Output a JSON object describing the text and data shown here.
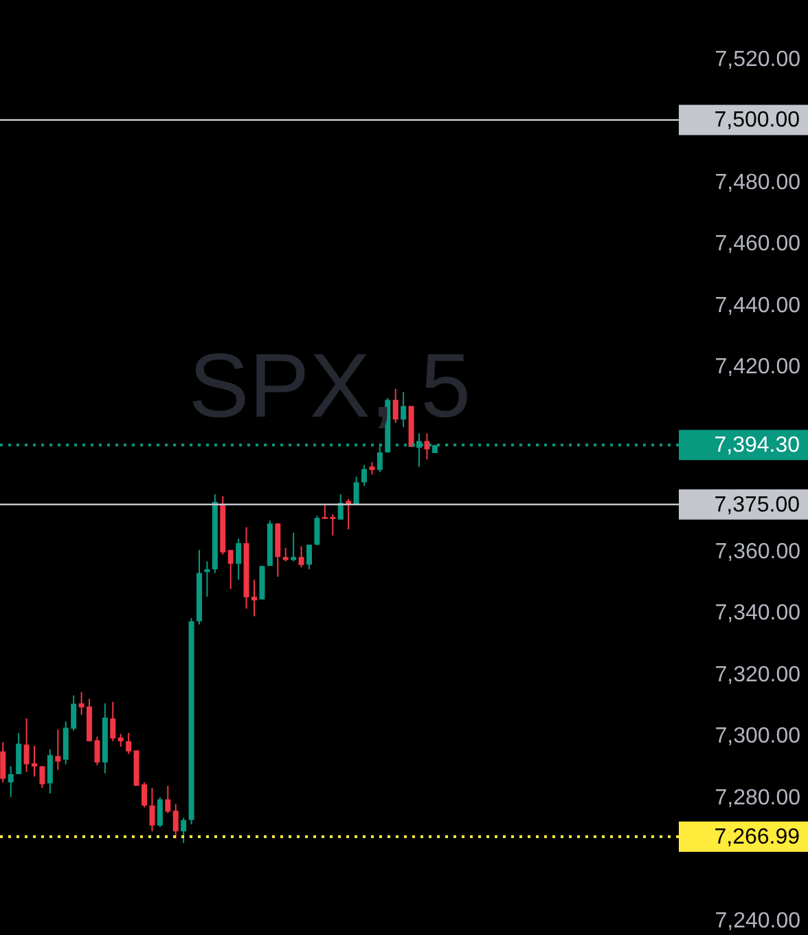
{
  "chart_data": {
    "type": "candlestick",
    "title": "SPX, 5",
    "categories": [
      null,
      null,
      null,
      null,
      null,
      null,
      null,
      null,
      null,
      null,
      null,
      null,
      null,
      null,
      null,
      null,
      null,
      null,
      null,
      null,
      null,
      null,
      null,
      null,
      null,
      null,
      null,
      null,
      null,
      null,
      null,
      null,
      null,
      null,
      null,
      null,
      null,
      null,
      null,
      null,
      null,
      null,
      null,
      null,
      null,
      null,
      null,
      null,
      null,
      null,
      null,
      null,
      null,
      null,
      null,
      null,
      null,
      null,
      null,
      null,
      null,
      null,
      null,
      null,
      null,
      null,
      null,
      null,
      null,
      null,
      null,
      null,
      null,
      null,
      null,
      null,
      null,
      null,
      null,
      null,
      null,
      null,
      null,
      null,
      null,
      null
    ],
    "ohlc": [
      [
        7294.7,
        7297.7,
        7284.6,
        7285.8
      ],
      [
        7284.6,
        7289.9,
        7279.8,
        7287.3
      ],
      [
        7287.3,
        7300.7,
        7287.3,
        7297.2
      ],
      [
        7296.9,
        7305.4,
        7288.0,
        7290.5
      ],
      [
        7290.8,
        7296.5,
        7286.5,
        7289.8
      ],
      [
        7289.9,
        7289.9,
        7282.8,
        7284.0
      ],
      [
        7284.3,
        7295.4,
        7281.0,
        7293.5
      ],
      [
        7293.2,
        7301.8,
        7288.7,
        7291.4
      ],
      [
        7292.0,
        7304.4,
        7290.5,
        7302.4
      ],
      [
        7302.1,
        7312.9,
        7301.4,
        7310.2
      ],
      [
        7310.3,
        7314.0,
        7306.6,
        7309.0
      ],
      [
        7309.3,
        7311.8,
        7298.0,
        7298.0
      ],
      [
        7298.3,
        7299.5,
        7290.2,
        7291.1
      ],
      [
        7291.1,
        7310.3,
        7287.6,
        7305.7
      ],
      [
        7305.4,
        7310.8,
        7298.0,
        7298.9
      ],
      [
        7299.2,
        7300.4,
        7296.2,
        7298.0
      ],
      [
        7298.0,
        7300.7,
        7293.9,
        7294.7
      ],
      [
        7295.0,
        7295.0,
        7283.5,
        7283.5
      ],
      [
        7284.0,
        7284.6,
        7276.5,
        7277.1
      ],
      [
        7277.1,
        7282.8,
        7268.7,
        7270.6
      ],
      [
        7270.6,
        7279.8,
        7270.1,
        7279.1
      ],
      [
        7279.1,
        7283.5,
        7274.6,
        7275.1
      ],
      [
        7275.4,
        7277.6,
        7266.4,
        7268.7
      ],
      [
        7268.7,
        7273.1,
        7264.9,
        7272.4
      ],
      [
        7272.4,
        7338.0,
        7271.0,
        7337.0
      ],
      [
        7337.0,
        7360.2,
        7336.0,
        7352.7
      ],
      [
        7353.0,
        7356.5,
        7345.0,
        7353.9
      ],
      [
        7353.9,
        7378.3,
        7352.7,
        7375.8
      ],
      [
        7375.1,
        7377.7,
        7358.7,
        7359.4
      ],
      [
        7360.2,
        7360.2,
        7347.5,
        7355.7
      ],
      [
        7355.7,
        7363.9,
        7350.5,
        7362.4
      ],
      [
        7362.4,
        7367.6,
        7341.1,
        7344.8
      ],
      [
        7345.0,
        7350.5,
        7338.6,
        7343.8
      ],
      [
        7344.1,
        7355.0,
        7344.1,
        7355.0
      ],
      [
        7355.0,
        7369.8,
        7355.0,
        7368.8
      ],
      [
        7368.8,
        7368.8,
        7351.5,
        7357.9
      ],
      [
        7357.9,
        7360.9,
        7356.5,
        7356.9
      ],
      [
        7356.9,
        7365.8,
        7356.5,
        7357.9
      ],
      [
        7357.9,
        7361.4,
        7354.5,
        7355.3
      ],
      [
        7355.4,
        7361.9,
        7353.9,
        7361.9
      ],
      [
        7361.9,
        7371.3,
        7361.7,
        7370.6
      ],
      [
        7370.9,
        7374.8,
        7370.3,
        7370.3
      ],
      [
        7370.9,
        7371.8,
        7364.9,
        7370.3
      ],
      [
        7370.1,
        7378.3,
        7370.1,
        7375.5
      ],
      [
        7376.1,
        7376.8,
        7366.9,
        7374.8
      ],
      [
        7374.8,
        7384.0,
        7374.8,
        7382.2
      ],
      [
        7382.2,
        7387.7,
        7381.0,
        7386.5
      ],
      [
        7387.3,
        7388.7,
        7384.7,
        7386.2
      ],
      [
        7386.2,
        7394.8,
        7385.5,
        7391.9
      ],
      [
        7391.9,
        7409.6,
        7391.9,
        7409.0
      ],
      [
        7409.0,
        7412.6,
        7401.5,
        7402.6
      ],
      [
        7402.6,
        7411.5,
        7400.1,
        7407.0
      ],
      [
        7407.0,
        7407.0,
        7393.7,
        7393.7
      ],
      [
        7393.4,
        7398.1,
        7387.2,
        7395.6
      ],
      [
        7395.6,
        7398.1,
        7389.6,
        7392.9
      ],
      [
        7391.7,
        7394.3,
        7391.7,
        7394.3
      ],
      null,
      null,
      null,
      null,
      null,
      null,
      null,
      null,
      null,
      null,
      null,
      null,
      null,
      null,
      null,
      null,
      null,
      null,
      null,
      null,
      null,
      null,
      null,
      null,
      null,
      null,
      null,
      null,
      null,
      null
    ],
    "colors": [
      "#f23645",
      "#089981",
      "#089981",
      "#f23645",
      "#f23645",
      "#f23645",
      "#089981",
      "#f23645",
      "#089981",
      "#089981",
      "#f23645",
      "#f23645",
      "#f23645",
      "#089981",
      "#f23645",
      "#f23645",
      "#f23645",
      "#f23645",
      "#f23645",
      "#f23645",
      "#089981",
      "#f23645",
      "#f23645",
      "#089981",
      "#089981",
      "#089981",
      "#089981",
      "#089981",
      "#f23645",
      "#f23645",
      "#089981",
      "#f23645",
      "#f23645",
      "#089981",
      "#089981",
      "#f23645",
      "#f23645",
      "#089981",
      "#f23645",
      "#089981",
      "#089981",
      "#f23645",
      "#f23645",
      "#089981",
      "#f23645",
      "#089981",
      "#089981",
      "#f23645",
      "#089981",
      "#089981",
      "#f23645",
      "#089981",
      "#f23645",
      "#089981",
      "#f23645",
      "#089981",
      null,
      null,
      null,
      null,
      null,
      null,
      null,
      null,
      null,
      null,
      null,
      null,
      null,
      null,
      null,
      null,
      null,
      null,
      null,
      null,
      null,
      null,
      null,
      null,
      null,
      null,
      null,
      null,
      null,
      null
    ],
    "ylim": [
      7235,
      7539
    ],
    "yticks": [
      {
        "value": 7240,
        "label": "7,240.00"
      },
      {
        "value": 7280,
        "label": "7,280.00"
      },
      {
        "value": 7300,
        "label": "7,300.00"
      },
      {
        "value": 7320,
        "label": "7,320.00"
      },
      {
        "value": 7340,
        "label": "7,340.00"
      },
      {
        "value": 7360,
        "label": "7,360.00"
      },
      {
        "value": 7420,
        "label": "7,420.00"
      },
      {
        "value": 7440,
        "label": "7,440.00"
      },
      {
        "value": 7460,
        "label": "7,460.00"
      },
      {
        "value": 7480,
        "label": "7,480.00"
      },
      {
        "value": 7500,
        "label": "7,500.00"
      },
      {
        "value": 7520,
        "label": "7,520.00"
      }
    ],
    "ref_lines": [
      {
        "axis": "y",
        "value": 7500,
        "label": "7,500.00",
        "color": "#c3c6cc",
        "line_style": "solid"
      },
      {
        "axis": "y",
        "value": 7394.3,
        "label": "7,394.30",
        "color": "#089981",
        "line_style": "dotted"
      },
      {
        "axis": "y",
        "value": 7375,
        "label": "7,375.00",
        "color": "#c3c6cc",
        "line_style": "solid"
      },
      {
        "axis": "y",
        "value": 7266.99,
        "label": "7,266.99",
        "color": "#ffeb3b",
        "line_style": "dotted"
      }
    ],
    "tick_labels": "y"
  }
}
